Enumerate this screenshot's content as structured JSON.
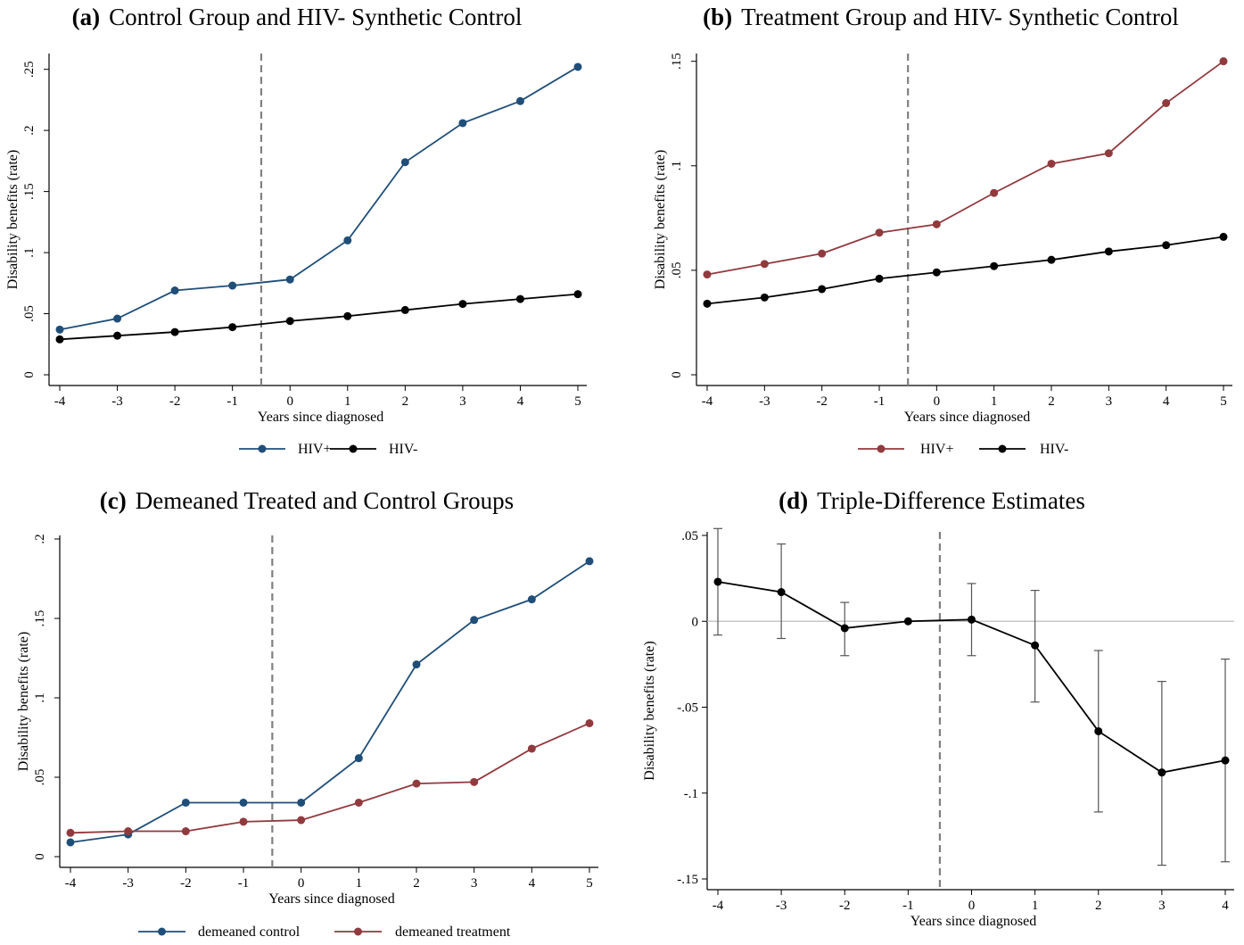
{
  "figure": {
    "colors": {
      "blue": "#1f4e79",
      "red": "#913a3e",
      "black": "#000000",
      "vline": "#808080",
      "zero": "#c8c8c8"
    }
  },
  "chart_data": [
    {
      "id": "a",
      "type": "line",
      "label": "(a)",
      "title": "Control Group and HIV- Synthetic Control",
      "xlabel": "Years since diagnosed",
      "ylabel": "Disability benefits (rate)",
      "x": [
        -4,
        -3,
        -2,
        -1,
        0,
        1,
        2,
        3,
        4,
        5
      ],
      "xlim": [
        -4,
        5
      ],
      "ylim": [
        0,
        0.26
      ],
      "yticks": [
        0,
        0.05,
        0.1,
        0.15,
        0.2,
        0.25
      ],
      "ytick_labels": [
        "0",
        ".05",
        ".1",
        ".15",
        ".2",
        ".25"
      ],
      "vline": -0.5,
      "legend_position": "bottom-center",
      "series": [
        {
          "name": "HIV+",
          "color": "#1f4e79",
          "values": [
            0.037,
            0.046,
            0.069,
            0.073,
            0.078,
            0.11,
            0.174,
            0.206,
            0.224,
            0.252
          ]
        },
        {
          "name": "HIV-",
          "color": "#000000",
          "values": [
            0.029,
            0.032,
            0.035,
            0.039,
            0.044,
            0.048,
            0.053,
            0.058,
            0.062,
            0.066
          ]
        }
      ]
    },
    {
      "id": "b",
      "type": "line",
      "label": "(b)",
      "title": "Treatment Group and HIV- Synthetic Control",
      "xlabel": "Years since diagnosed",
      "ylabel": "Disability benefits (rate)",
      "x": [
        -4,
        -3,
        -2,
        -1,
        0,
        1,
        2,
        3,
        4,
        5
      ],
      "xlim": [
        -4,
        5
      ],
      "ylim": [
        0,
        0.152
      ],
      "yticks": [
        0,
        0.05,
        0.1,
        0.15
      ],
      "ytick_labels": [
        "0",
        ".05",
        ".1",
        ".15"
      ],
      "vline": -0.5,
      "legend_position": "bottom-center",
      "series": [
        {
          "name": "HIV+",
          "color": "#913a3e",
          "values": [
            0.048,
            0.053,
            0.058,
            0.068,
            0.072,
            0.087,
            0.101,
            0.106,
            0.13,
            0.15
          ]
        },
        {
          "name": "HIV-",
          "color": "#000000",
          "values": [
            0.034,
            0.037,
            0.041,
            0.046,
            0.049,
            0.052,
            0.055,
            0.059,
            0.062,
            0.066
          ]
        }
      ]
    },
    {
      "id": "c",
      "type": "line",
      "label": "(c)",
      "title": "Demeaned Treated and Control Groups",
      "xlabel": "Years since diagnosed",
      "ylabel": "Disability benefits (rate)",
      "x": [
        -4,
        -3,
        -2,
        -1,
        0,
        1,
        2,
        3,
        4,
        5
      ],
      "xlim": [
        -4,
        5
      ],
      "ylim": [
        0,
        0.2
      ],
      "yticks": [
        0,
        0.05,
        0.1,
        0.15,
        0.2
      ],
      "ytick_labels": [
        "0",
        ".05",
        ".1",
        ".15",
        ".2"
      ],
      "vline": -0.5,
      "legend_position": "bottom-center",
      "series": [
        {
          "name": "demeaned control",
          "color": "#1f4e79",
          "values": [
            0.009,
            0.014,
            0.034,
            0.034,
            0.034,
            0.062,
            0.121,
            0.149,
            0.162,
            0.186
          ]
        },
        {
          "name": "demeaned treatment",
          "color": "#913a3e",
          "values": [
            0.015,
            0.016,
            0.016,
            0.022,
            0.023,
            0.034,
            0.046,
            0.047,
            0.068,
            0.084
          ]
        }
      ]
    },
    {
      "id": "d",
      "type": "line",
      "label": "(d)",
      "title": "Triple-Difference Estimates",
      "xlabel": "Years since diagnosed",
      "ylabel": "Disability benefits (rate)",
      "x": [
        -4,
        -3,
        -2,
        -1,
        0,
        1,
        2,
        3,
        4
      ],
      "xlim": [
        -4,
        4
      ],
      "ylim": [
        -0.15,
        0.05
      ],
      "yticks": [
        -0.15,
        -0.1,
        -0.05,
        0,
        0.05
      ],
      "ytick_labels": [
        "-.15",
        "-.1",
        "-.05",
        "0",
        ".05"
      ],
      "vline": -0.5,
      "zero_line": true,
      "series": [
        {
          "color": "#000000",
          "values": [
            0.023,
            0.017,
            -0.004,
            0.0,
            0.001,
            -0.014,
            -0.064,
            -0.088,
            -0.081
          ],
          "ci_low": [
            -0.008,
            -0.01,
            -0.02,
            null,
            -0.02,
            -0.047,
            -0.111,
            -0.142,
            -0.14
          ],
          "ci_high": [
            0.054,
            0.045,
            0.011,
            null,
            0.022,
            0.018,
            -0.017,
            -0.035,
            -0.022
          ]
        }
      ]
    }
  ]
}
